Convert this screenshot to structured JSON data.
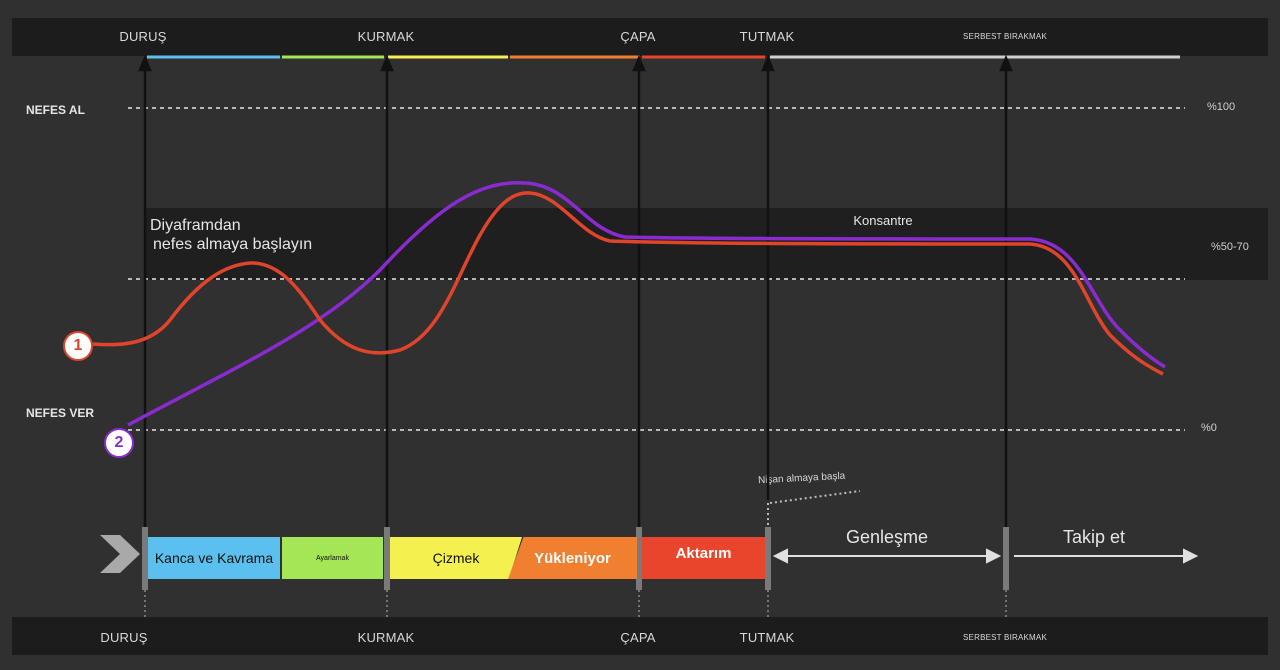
{
  "phases_top": [
    {
      "label": "DURUŞ",
      "small": false
    },
    {
      "label": "KURMAK",
      "small": false
    },
    {
      "label": "ÇAPA",
      "small": false
    },
    {
      "label": "TUTMAK",
      "small": false
    },
    {
      "label": "SERBEST BIRAKMAK",
      "small": true
    }
  ],
  "phases_bottom": [
    {
      "label": "DURUŞ",
      "small": false
    },
    {
      "label": "KURMAK",
      "small": false
    },
    {
      "label": "ÇAPA",
      "small": false
    },
    {
      "label": "TUTMAK",
      "small": false
    },
    {
      "label": "SERBEST BIRAKMAK",
      "small": true
    }
  ],
  "levels": {
    "inhale": "NEFES AL",
    "exhale": "NEFES VER",
    "pct_100": "%100",
    "pct_50_70": "%50-70",
    "pct_0": "%0"
  },
  "annotations": {
    "diaphragm_line1": "Diyaframdan",
    "diaphragm_line2": "nefes almaya başlayın",
    "concentrate": "Konsantre",
    "start_aiming": "Nişan almaya başla"
  },
  "markers": {
    "one": "1",
    "two": "2"
  },
  "phase_boxes": [
    {
      "label": "Kanca ve Kavrama",
      "color": "#5bc0ee"
    },
    {
      "label": "Ayarlamak",
      "color": "#a4e655"
    },
    {
      "label": "Çizmek",
      "color": "#f4f04f"
    },
    {
      "label": "Yükleniyor",
      "color": "#f07f2f"
    },
    {
      "label": "Aktarım",
      "color": "#e8452c"
    }
  ],
  "arrows": {
    "expansion": "Genleşme",
    "follow": "Takip et"
  },
  "colors": {
    "line_1": "#e0442a",
    "line_2": "#8a2bd0",
    "background": "#303030",
    "band": "#1c1c1c"
  },
  "chart_data": {
    "type": "line",
    "title": "",
    "xlabel": "",
    "ylabel": "",
    "ylim": [
      0,
      100
    ],
    "series": [
      {
        "name": "1",
        "color": "#e0442a"
      },
      {
        "name": "2",
        "color": "#8a2bd0"
      }
    ]
  }
}
